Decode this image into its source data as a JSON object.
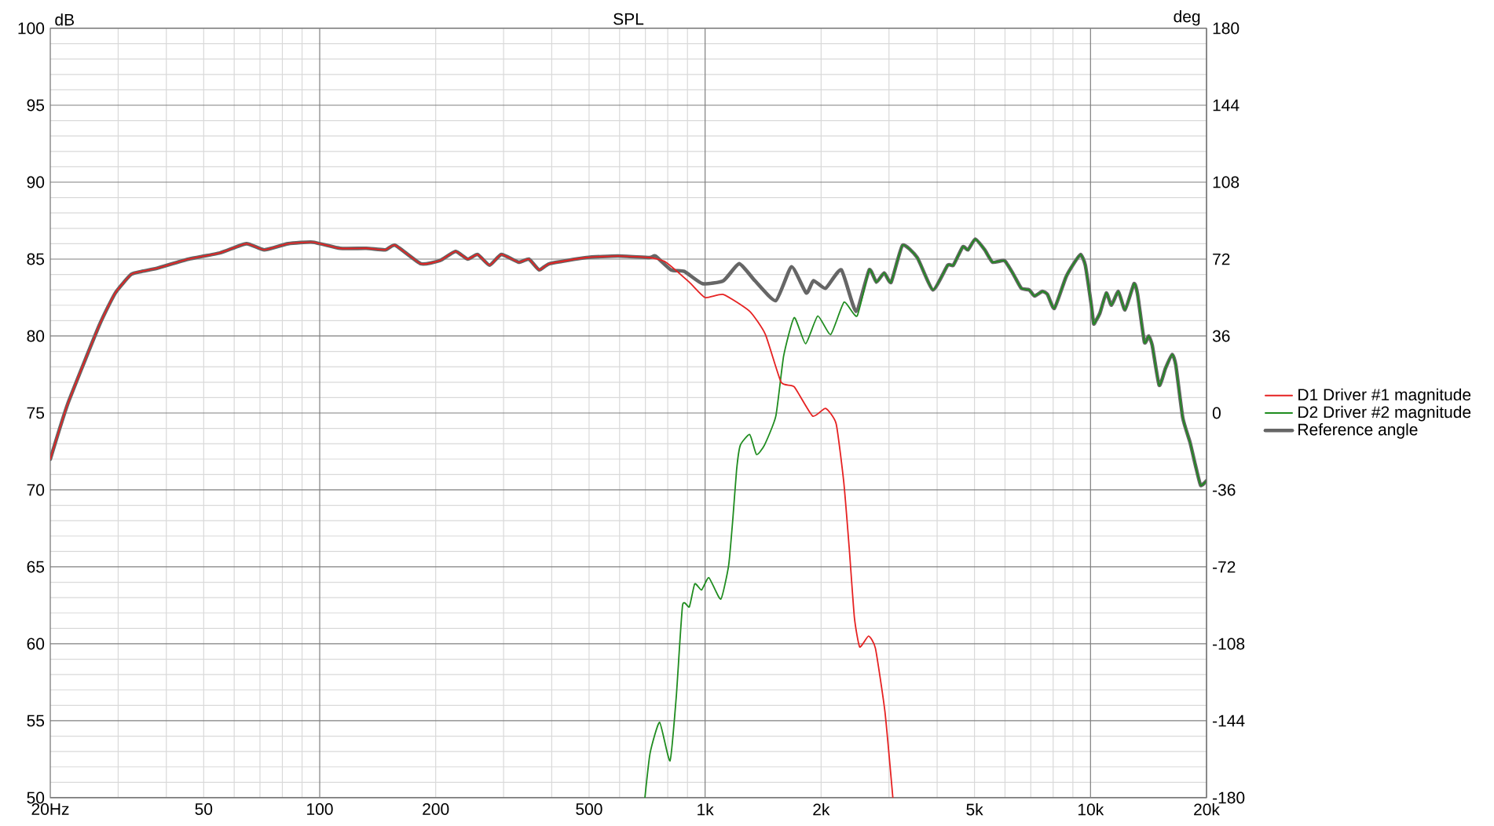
{
  "chart_data": {
    "type": "line",
    "title": "SPL",
    "ylabel": "dB",
    "y2label": "deg",
    "xlim": [
      20,
      20000
    ],
    "xticks": [
      {
        "value": 20,
        "label": "20Hz"
      },
      50,
      100,
      200,
      500,
      {
        "value": 1000,
        "label": "1k"
      },
      {
        "value": 2000,
        "label": "2k"
      },
      {
        "value": 5000,
        "label": "5k"
      },
      {
        "value": 10000,
        "label": "10k"
      },
      {
        "value": 20000,
        "label": "20k"
      }
    ],
    "ylim": [
      50,
      100
    ],
    "yticks": [
      50,
      55,
      60,
      65,
      70,
      75,
      80,
      85,
      90,
      95,
      100
    ],
    "y2lim": [
      -180,
      180
    ],
    "y2ticks": [
      -180,
      -144,
      -108,
      -72,
      -36,
      0,
      36,
      72,
      108,
      144,
      180
    ],
    "log": "x",
    "grid": true,
    "legend": "right",
    "marker": "none",
    "line_style": "solid",
    "series": [
      {
        "name": "D1 Driver #1 magnitude",
        "color": "#e62222",
        "x": [
          20,
          22.2,
          26.8,
          29.5,
          32.4,
          34.5,
          37.8,
          45.7,
          55.1,
          64.5,
          71.8,
          82.8,
          96,
          113,
          132,
          148,
          157,
          183,
          205,
          225,
          242,
          257,
          276,
          296,
          328,
          349,
          371,
          395,
          492,
          594,
          717,
          791,
          910,
          1000,
          1116,
          1306,
          1434,
          1575,
          1703,
          1901,
          2054,
          2188,
          2290,
          2366,
          2440,
          2518,
          2655,
          2767,
          2928,
          3070
        ],
        "values": [
          72.0,
          75.6,
          80.7,
          82.8,
          84.0,
          84.2,
          84.4,
          85.0,
          85.4,
          86.0,
          85.6,
          86.0,
          86.1,
          85.7,
          85.7,
          85.6,
          85.9,
          84.7,
          84.9,
          85.5,
          85.0,
          85.3,
          84.6,
          85.3,
          84.8,
          85.0,
          84.3,
          84.7,
          85.1,
          85.2,
          85.1,
          84.8,
          83.5,
          82.5,
          82.7,
          81.6,
          80.1,
          77.0,
          76.7,
          74.8,
          75.3,
          74.3,
          70.5,
          66.2,
          61.7,
          59.8,
          60.5,
          59.7,
          55.6,
          50.0
        ]
      },
      {
        "name": "D2 Driver #2 magnitude",
        "color": "#1f8c1f",
        "x": [
          698,
          720,
          762,
          811,
          842,
          874,
          910,
          940,
          979,
          1023,
          1098,
          1151,
          1181,
          1207,
          1234,
          1306,
          1359,
          1425,
          1526,
          1599,
          1703,
          1823,
          1960,
          2118,
          2294,
          2479,
          2665,
          2782,
          2915,
          3039,
          3253,
          3552,
          3900,
          4260,
          4406,
          4662,
          4809,
          5025,
          5316,
          5570,
          5984,
          6313,
          6616,
          6934,
          7155,
          7499,
          7738,
          8059,
          8627,
          9045,
          9425,
          9694,
          10050,
          10190,
          10330,
          10580,
          10990,
          11330,
          11810,
          12290,
          12970,
          13250,
          13800,
          14150,
          14460,
          15070,
          15650,
          16290,
          16650,
          17350,
          18120,
          18720,
          19310,
          20000
        ],
        "values": [
          50.0,
          52.9,
          54.9,
          52.4,
          56.6,
          62.5,
          62.4,
          63.9,
          63.5,
          64.3,
          62.9,
          65.1,
          68.2,
          71.3,
          72.9,
          73.6,
          72.3,
          72.9,
          74.8,
          78.7,
          81.2,
          79.5,
          81.3,
          80.1,
          82.2,
          81.3,
          84.3,
          83.5,
          84.1,
          83.5,
          85.9,
          85.1,
          83.0,
          84.6,
          84.6,
          85.8,
          85.6,
          86.3,
          85.6,
          84.8,
          84.9,
          84.0,
          83.1,
          83.0,
          82.6,
          82.9,
          82.7,
          81.8,
          83.8,
          84.7,
          85.3,
          84.6,
          82.0,
          80.8,
          81.0,
          81.5,
          82.8,
          82.0,
          82.9,
          81.7,
          83.4,
          82.7,
          79.6,
          80.0,
          79.4,
          76.8,
          77.9,
          78.8,
          78.1,
          74.7,
          73.1,
          71.6,
          70.3,
          70.6
        ]
      },
      {
        "name": "Reference angle",
        "color": "#666666",
        "x": [
          20,
          22.2,
          26.8,
          29.5,
          32.4,
          34.5,
          37.8,
          45.7,
          55.1,
          64.5,
          71.8,
          82.8,
          96,
          113,
          132,
          148,
          157,
          183,
          205,
          225,
          242,
          257,
          276,
          296,
          328,
          349,
          371,
          395,
          492,
          594,
          717,
          743,
          816,
          883,
          985,
          1116,
          1226,
          1346,
          1526,
          1676,
          1830,
          1911,
          2054,
          2256,
          2463,
          2665,
          2782,
          2915,
          3039,
          3253,
          3552,
          3900,
          4260,
          4406,
          4662,
          4809,
          5025,
          5316,
          5570,
          5984,
          6313,
          6616,
          6934,
          7155,
          7499,
          7738,
          8059,
          8627,
          9045,
          9425,
          9694,
          10050,
          10190,
          10330,
          10580,
          10990,
          11330,
          11810,
          12290,
          12970,
          13250,
          13800,
          14150,
          14460,
          15070,
          15650,
          16290,
          16650,
          17350,
          18120,
          18720,
          19310,
          20000
        ],
        "values": [
          72.0,
          75.6,
          80.7,
          82.8,
          84.0,
          84.2,
          84.4,
          85.0,
          85.4,
          86.0,
          85.6,
          86.0,
          86.1,
          85.7,
          85.7,
          85.6,
          85.9,
          84.7,
          84.9,
          85.5,
          85.0,
          85.3,
          84.6,
          85.3,
          84.8,
          85.0,
          84.3,
          84.7,
          85.1,
          85.2,
          85.1,
          85.2,
          84.3,
          84.2,
          83.4,
          83.6,
          84.7,
          83.6,
          82.3,
          84.5,
          82.8,
          83.6,
          83.1,
          84.3,
          81.6,
          84.3,
          83.5,
          84.1,
          83.5,
          85.9,
          85.1,
          83.0,
          84.6,
          84.6,
          85.8,
          85.6,
          86.3,
          85.6,
          84.8,
          84.9,
          84.0,
          83.1,
          83.0,
          82.6,
          82.9,
          82.7,
          81.8,
          83.8,
          84.7,
          85.3,
          84.6,
          82.0,
          80.8,
          81.0,
          81.5,
          82.8,
          82.0,
          82.9,
          81.7,
          83.4,
          82.7,
          79.6,
          80.0,
          79.4,
          76.8,
          77.9,
          78.8,
          78.1,
          74.7,
          73.1,
          71.6,
          70.3,
          70.6
        ]
      }
    ]
  }
}
